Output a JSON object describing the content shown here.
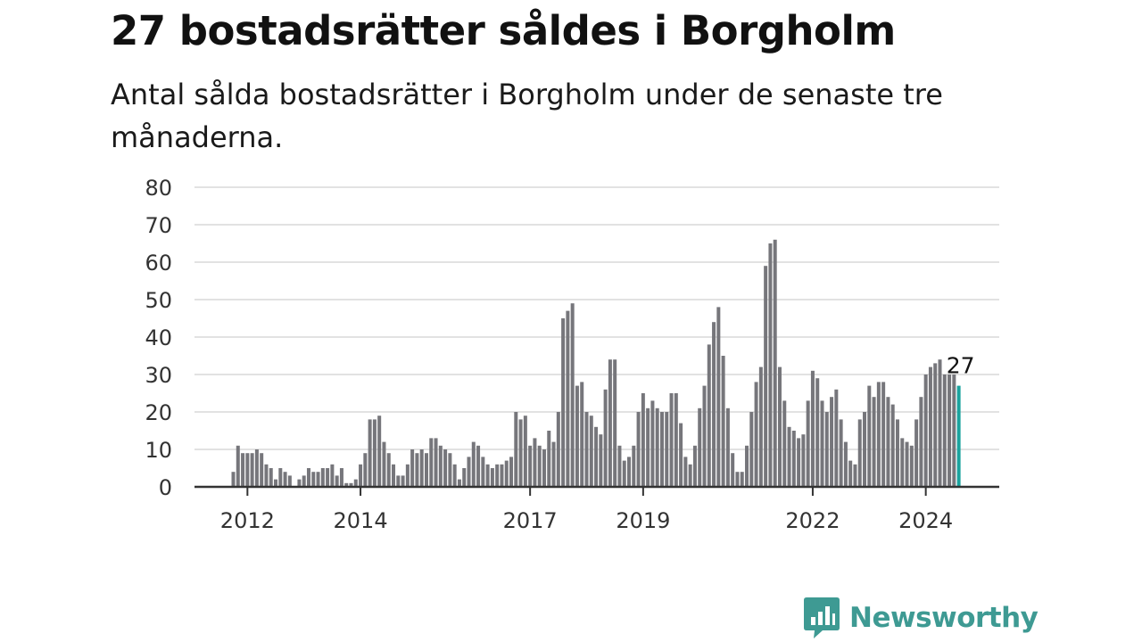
{
  "title": "27 bostadsrätter såldes i Borgholm",
  "subtitle": "Antal sålda bostadsrätter i Borgholm under de senaste tre månaderna.",
  "colors": {
    "bar": "#76767b",
    "highlight": "#1aa39e",
    "grid": "#d9d9d9",
    "axis": "#333333",
    "brand": "#3e9a93"
  },
  "logo": {
    "text": "Newsworthy",
    "icon": "newsworthy-logo-icon"
  },
  "chart_data": {
    "type": "bar",
    "ylim": [
      0,
      80
    ],
    "yticks": [
      0,
      10,
      20,
      30,
      40,
      50,
      60,
      70,
      80
    ],
    "x_labels": [
      "2012",
      "2014",
      "2017",
      "2019",
      "2022",
      "2024"
    ],
    "grid": true,
    "highlight_label": "27",
    "x_start": "2011-10",
    "values": [
      4,
      11,
      9,
      9,
      9,
      10,
      9,
      6,
      5,
      2,
      5,
      4,
      3,
      0,
      2,
      3,
      5,
      4,
      4,
      5,
      5,
      6,
      3,
      5,
      1,
      1,
      2,
      6,
      9,
      18,
      18,
      19,
      12,
      9,
      6,
      3,
      3,
      6,
      10,
      9,
      10,
      9,
      13,
      13,
      11,
      10,
      9,
      6,
      2,
      5,
      8,
      12,
      11,
      8,
      6,
      5,
      6,
      6,
      7,
      8,
      20,
      18,
      19,
      11,
      13,
      11,
      10,
      15,
      12,
      20,
      45,
      47,
      49,
      27,
      28,
      20,
      19,
      16,
      14,
      26,
      34,
      34,
      11,
      7,
      8,
      11,
      20,
      25,
      21,
      23,
      21,
      20,
      20,
      25,
      25,
      17,
      8,
      6,
      11,
      21,
      27,
      38,
      44,
      48,
      35,
      21,
      9,
      4,
      4,
      11,
      20,
      28,
      32,
      59,
      65,
      66,
      32,
      23,
      16,
      15,
      13,
      14,
      23,
      31,
      29,
      23,
      20,
      24,
      26,
      18,
      12,
      7,
      6,
      18,
      20,
      27,
      24,
      28,
      28,
      24,
      22,
      18,
      13,
      12,
      11,
      18,
      24,
      30,
      32,
      33,
      34,
      30,
      30,
      30,
      27
    ]
  }
}
